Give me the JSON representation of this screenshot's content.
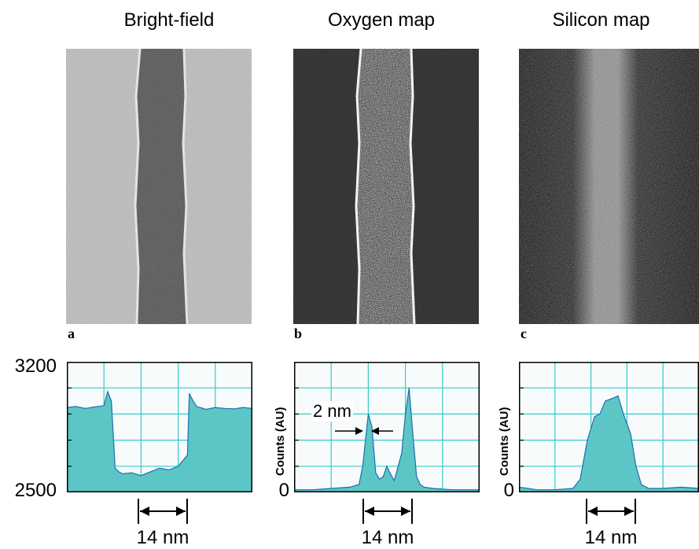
{
  "panel_titles": {
    "bright_field": "Bright-field",
    "oxygen": "Oxygen map",
    "silicon": "Silicon map"
  },
  "panel_letters": {
    "a": "a",
    "b": "b",
    "c": "c"
  },
  "plot_a": {
    "y_top_tick": "3200",
    "y_bottom_tick": "2500",
    "scale_label": "14 nm"
  },
  "plot_b": {
    "ylabel": "Counts (AU)",
    "y_zero_tick": "0",
    "annotation": "2 nm",
    "scale_label": "14 nm"
  },
  "plot_c": {
    "ylabel": "Counts (AU)",
    "y_zero_tick": "0",
    "scale_label": "14 nm"
  },
  "colors": {
    "fill": "#5cc6c6",
    "grid": "#33cccc",
    "line": "#1a6fae",
    "plot_bg": "#f7fbfb"
  },
  "chart_data": [
    {
      "type": "area",
      "panel": "a",
      "ylim": [
        2500,
        3200
      ],
      "y_tick_labels": [
        "3200",
        "2500"
      ],
      "x_scale_label": "14 nm",
      "x": [
        0,
        5,
        10,
        15,
        20,
        22,
        24,
        26,
        28,
        30,
        35,
        40,
        45,
        50,
        55,
        60,
        65,
        66,
        68,
        70,
        75,
        80,
        85,
        90,
        95,
        100
      ],
      "values": [
        2955,
        2960,
        2950,
        2958,
        2965,
        3040,
        2990,
        2630,
        2610,
        2600,
        2605,
        2590,
        2610,
        2630,
        2620,
        2640,
        2700,
        3030,
        2990,
        2960,
        2945,
        2955,
        2950,
        2948,
        2955,
        2950
      ]
    },
    {
      "type": "area",
      "panel": "b",
      "ylabel": "Counts (AU)",
      "y_tick_labels": [
        "0"
      ],
      "annotation": "2 nm",
      "x_scale_label": "14 nm",
      "x": [
        0,
        10,
        20,
        30,
        35,
        37,
        40,
        42,
        44,
        46,
        48,
        50,
        52,
        54,
        58,
        60,
        62,
        64,
        66,
        68,
        70,
        75,
        85,
        100
      ],
      "values": [
        2,
        2,
        3,
        4,
        6,
        20,
        60,
        50,
        15,
        10,
        12,
        20,
        14,
        9,
        30,
        60,
        80,
        45,
        12,
        6,
        4,
        3,
        2,
        2
      ]
    },
    {
      "type": "area",
      "panel": "c",
      "ylabel": "Counts (AU)",
      "y_tick_labels": [
        "0"
      ],
      "x_scale_label": "14 nm",
      "x": [
        0,
        5,
        10,
        20,
        30,
        34,
        38,
        42,
        45,
        48,
        52,
        55,
        58,
        62,
        65,
        68,
        72,
        80,
        90,
        100
      ],
      "values": [
        4,
        3,
        2,
        2,
        3,
        10,
        40,
        58,
        60,
        70,
        72,
        74,
        60,
        45,
        20,
        6,
        3,
        3,
        4,
        3
      ]
    }
  ]
}
